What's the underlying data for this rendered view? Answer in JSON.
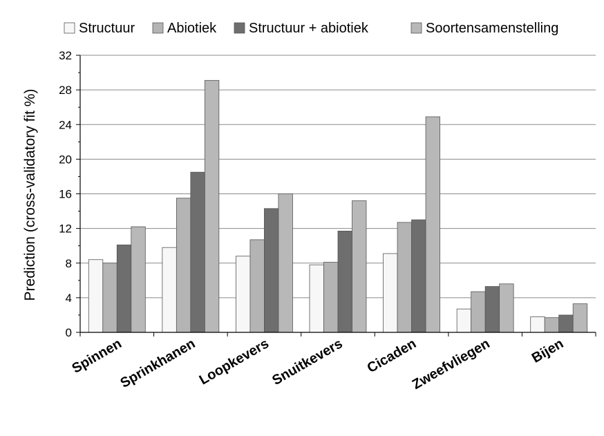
{
  "chart_data": {
    "type": "bar",
    "title": "",
    "xlabel": "",
    "ylabel": "Prediction (cross-validatory fit %)",
    "ylim": [
      0,
      32
    ],
    "yticks": [
      0,
      4,
      8,
      12,
      16,
      20,
      24,
      28,
      32
    ],
    "grid": true,
    "legend_position": "top",
    "categories": [
      "Spinnen",
      "Sprinkhanen",
      "Loopkevers",
      "Snuitkevers",
      "Cicaden",
      "Zweefvliegen",
      "Bijen"
    ],
    "series": [
      {
        "name": "Structuur",
        "color": "#f7f7f7",
        "values": [
          8.4,
          9.8,
          8.8,
          7.8,
          9.1,
          2.7,
          1.8
        ]
      },
      {
        "name": "Abiotiek",
        "color": "#b4b4b4",
        "values": [
          8.0,
          15.5,
          10.7,
          8.1,
          12.7,
          4.7,
          1.7
        ]
      },
      {
        "name": "Structuur + abiotiek",
        "color": "#6e6e6e",
        "values": [
          10.1,
          18.5,
          14.3,
          11.7,
          13.0,
          5.3,
          2.0
        ]
      },
      {
        "name": "Soortensamenstelling",
        "color": "#b8b8b8",
        "values": [
          12.2,
          29.1,
          16.0,
          15.2,
          24.9,
          5.6,
          3.3
        ]
      }
    ]
  }
}
